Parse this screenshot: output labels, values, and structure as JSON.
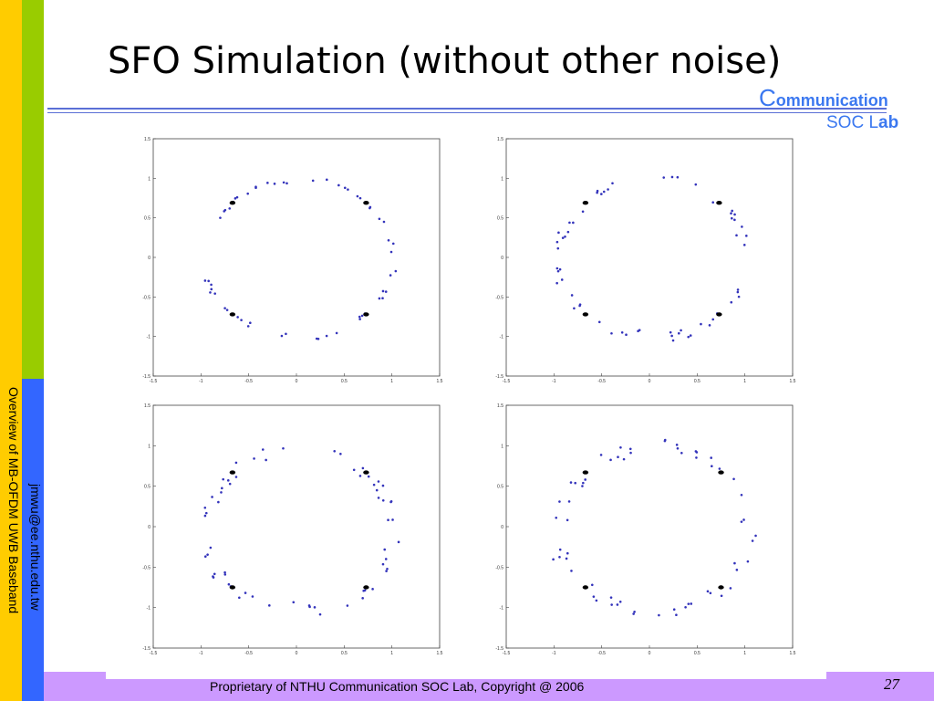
{
  "slide": {
    "title": "SFO Simulation (without other noise)",
    "logo_line1_initial": "C",
    "logo_line1_rest": "ommunication",
    "logo_line2_soc": "SOC L",
    "logo_line2_ab": "ab",
    "footer": "Proprietary of NTHU Communication SOC Lab, Copyright @ 2006",
    "page_number": "27",
    "side_course": "Overview of MB-OFDM UWB Baseband",
    "side_email": "jmwu@ee.nthu.edu.tw"
  },
  "colors": {
    "yellow_bar": "#ffcc00",
    "green_bar": "#99cc00",
    "blue_bar": "#3366ff",
    "bottom_band": "#cc99ff",
    "logo": "#3b78f0",
    "rule": "#5a6fd6",
    "point_blue": "#3333bb",
    "point_black": "#000000"
  },
  "chart_data": [
    {
      "type": "scatter",
      "xlim": [
        -1.5,
        1.5
      ],
      "ylim": [
        -1.5,
        1.5
      ],
      "xticks": [
        "-1.5",
        "-1",
        "-0.5",
        "0",
        "0.5",
        "1",
        "1.5"
      ],
      "yticks": [
        "1.5",
        "1",
        "0.5",
        "0",
        "-0.5",
        "-1",
        "-1.5"
      ],
      "grid": false,
      "ideal_points": [
        [
          -0.67,
          0.69
        ],
        [
          0.73,
          0.69
        ],
        [
          -0.67,
          -0.72
        ],
        [
          0.73,
          -0.72
        ]
      ],
      "scatter_spread": 0.03,
      "rotation_range_deg": [
        -40,
        40
      ],
      "point_count": 56
    },
    {
      "type": "scatter",
      "xlim": [
        -1.5,
        1.5
      ],
      "ylim": [
        -1.5,
        1.5
      ],
      "xticks": [
        "-1.5",
        "-1",
        "-0.5",
        "0",
        "0.5",
        "1",
        "1.5"
      ],
      "yticks": [
        "1.5",
        "1",
        "0.5",
        "0",
        "-0.5",
        "-1",
        "-1.5"
      ],
      "grid": false,
      "ideal_points": [
        [
          -0.67,
          0.69
        ],
        [
          0.73,
          0.69
        ],
        [
          -0.67,
          -0.72
        ],
        [
          0.73,
          -0.72
        ]
      ],
      "scatter_spread": 0.06,
      "rotation_range_deg": [
        -40,
        40
      ],
      "point_count": 60
    },
    {
      "type": "scatter",
      "xlim": [
        -1.5,
        1.5
      ],
      "ylim": [
        -1.5,
        1.5
      ],
      "xticks": [
        "-1.5",
        "-1",
        "-0.5",
        "0",
        "0.5",
        "1",
        "1.5"
      ],
      "yticks": [
        "1.5",
        "1",
        "0.5",
        "0",
        "-0.5",
        "-1",
        "-1.5"
      ],
      "grid": false,
      "ideal_points": [
        [
          -0.67,
          0.67
        ],
        [
          0.73,
          0.67
        ],
        [
          -0.67,
          -0.75
        ],
        [
          0.73,
          -0.75
        ]
      ],
      "scatter_spread": 0.08,
      "rotation_range_deg": [
        -40,
        40
      ],
      "point_count": 62
    },
    {
      "type": "scatter",
      "xlim": [
        -1.5,
        1.5
      ],
      "ylim": [
        -1.5,
        1.5
      ],
      "xticks": [
        "-1.5",
        "-1",
        "-0.5",
        "0",
        "0.5",
        "1",
        "1.5"
      ],
      "yticks": [
        "1.5",
        "1",
        "0.5",
        "0",
        "-0.5",
        "-1",
        "-1.5"
      ],
      "grid": false,
      "ideal_points": [
        [
          -0.67,
          0.67
        ],
        [
          0.75,
          0.67
        ],
        [
          -0.67,
          -0.75
        ],
        [
          0.75,
          -0.75
        ]
      ],
      "scatter_spread": 0.09,
      "rotation_range_deg": [
        -40,
        40
      ],
      "point_count": 62
    }
  ]
}
